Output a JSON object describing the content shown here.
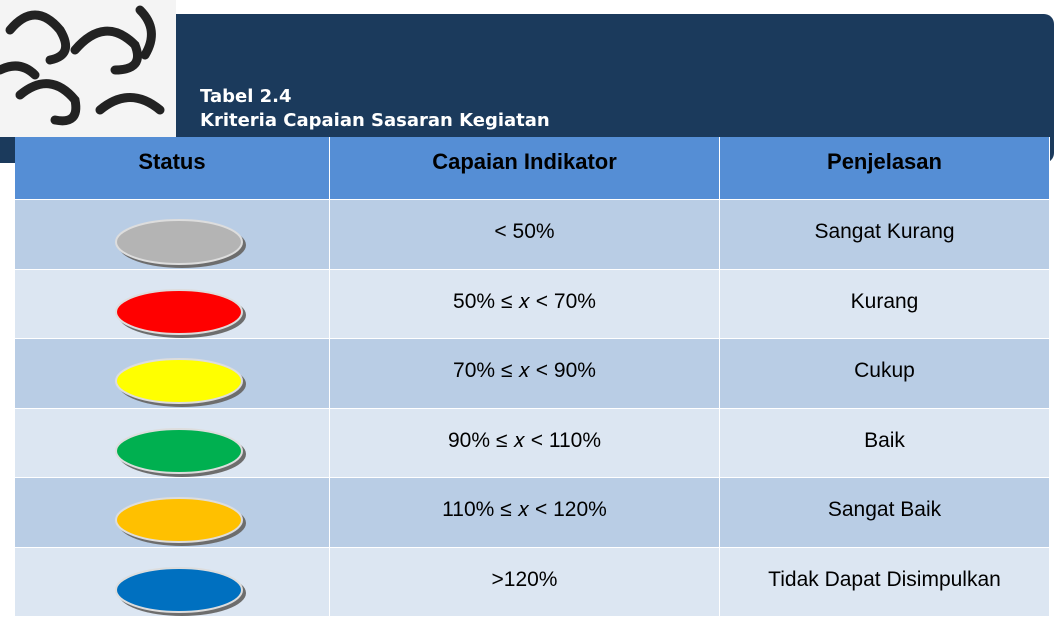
{
  "header": {
    "title_lines": [
      "Tabel 2.4",
      "Kriteria Capaian Sasaran Kegiatan"
    ]
  },
  "table": {
    "columns": [
      "Status",
      "Capaian Indikator",
      "Penjelasan"
    ],
    "rows": [
      {
        "status_color": "#b4b4b4",
        "capaian": "< 50%",
        "penjelasan": "Sangat Kurang"
      },
      {
        "status_color": "#ff0000",
        "capaian": "50% ≤ 𝑥 < 70%",
        "penjelasan": "Kurang"
      },
      {
        "status_color": "#ffff00",
        "capaian": "70% ≤ 𝑥 < 90%",
        "penjelasan": "Cukup"
      },
      {
        "status_color": "#00b050",
        "capaian": "90% ≤ 𝑥 < 110%",
        "penjelasan": "Baik"
      },
      {
        "status_color": "#ffc000",
        "capaian": "110% ≤ 𝑥 < 120%",
        "penjelasan": "Sangat Baik"
      },
      {
        "status_color": "#0070c0",
        "capaian": ">120%",
        "penjelasan": "Tidak Dapat Disimpulkan"
      }
    ]
  }
}
